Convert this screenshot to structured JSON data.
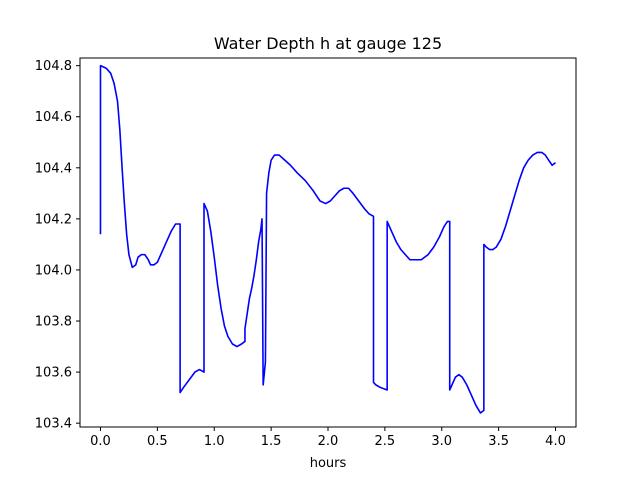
{
  "chart_data": {
    "type": "line",
    "title": "Water Depth h at gauge 125",
    "xlabel": "hours",
    "ylabel": "",
    "xlim": [
      -0.18,
      4.18
    ],
    "ylim": [
      103.385,
      104.83
    ],
    "xticks": [
      0.0,
      0.5,
      1.0,
      1.5,
      2.0,
      2.5,
      3.0,
      3.5,
      4.0
    ],
    "xtick_labels": [
      "0.0",
      "0.5",
      "1.0",
      "1.5",
      "2.0",
      "2.5",
      "3.0",
      "3.5",
      "4.0"
    ],
    "yticks": [
      103.4,
      103.6,
      103.8,
      104.0,
      104.2,
      104.4,
      104.6,
      104.8
    ],
    "ytick_labels": [
      "103.4",
      "103.6",
      "103.8",
      "104.0",
      "104.2",
      "104.4",
      "104.6",
      "104.8"
    ],
    "grid": false,
    "series": [
      {
        "color": "#0000ff",
        "x": [
          0.0,
          0.0,
          0.0,
          0.0,
          0.05,
          0.09,
          0.12,
          0.15,
          0.17,
          0.19,
          0.21,
          0.23,
          0.25,
          0.28,
          0.31,
          0.33,
          0.36,
          0.39,
          0.42,
          0.44,
          0.47,
          0.5,
          0.54,
          0.58,
          0.62,
          0.66,
          0.7,
          0.7,
          0.73,
          0.78,
          0.83,
          0.87,
          0.91,
          0.91,
          0.91,
          0.94,
          0.97,
          1.0,
          1.03,
          1.06,
          1.09,
          1.12,
          1.16,
          1.2,
          1.24,
          1.27,
          1.27,
          1.29,
          1.31,
          1.33,
          1.35,
          1.37,
          1.39,
          1.41,
          1.42,
          1.43,
          1.43,
          1.45,
          1.46,
          1.46,
          1.48,
          1.5,
          1.53,
          1.57,
          1.62,
          1.67,
          1.73,
          1.8,
          1.87,
          1.93,
          1.98,
          2.02,
          2.06,
          2.1,
          2.14,
          2.18,
          2.22,
          2.27,
          2.32,
          2.36,
          2.4,
          2.4,
          2.42,
          2.46,
          2.52,
          2.52,
          2.53,
          2.56,
          2.6,
          2.64,
          2.68,
          2.72,
          2.77,
          2.82,
          2.88,
          2.93,
          2.98,
          3.02,
          3.05,
          3.07,
          3.07,
          3.09,
          3.12,
          3.15,
          3.18,
          3.22,
          3.26,
          3.3,
          3.34,
          3.37,
          3.37,
          3.39,
          3.42,
          3.45,
          3.48,
          3.52,
          3.56,
          3.6,
          3.64,
          3.68,
          3.72,
          3.76,
          3.8,
          3.84,
          3.88,
          3.91,
          3.94,
          3.97,
          4.0
        ],
        "y": [
          104.14,
          104.38,
          104.8,
          104.8,
          104.79,
          104.77,
          104.73,
          104.66,
          104.55,
          104.4,
          104.26,
          104.14,
          104.06,
          104.01,
          104.02,
          104.05,
          104.06,
          104.06,
          104.04,
          104.02,
          104.02,
          104.03,
          104.07,
          104.11,
          104.15,
          104.18,
          104.18,
          103.52,
          103.54,
          103.57,
          103.6,
          103.61,
          103.6,
          103.6,
          104.26,
          104.23,
          104.15,
          104.05,
          103.94,
          103.85,
          103.78,
          103.74,
          103.71,
          103.7,
          103.71,
          103.72,
          103.77,
          103.83,
          103.89,
          103.93,
          103.98,
          104.04,
          104.11,
          104.16,
          104.2,
          103.55,
          103.55,
          103.64,
          104.3,
          104.3,
          104.38,
          104.43,
          104.45,
          104.45,
          104.43,
          104.41,
          104.38,
          104.35,
          104.31,
          104.27,
          104.26,
          104.27,
          104.29,
          104.31,
          104.32,
          104.32,
          104.3,
          104.27,
          104.24,
          104.22,
          104.21,
          103.56,
          103.55,
          103.54,
          103.53,
          104.19,
          104.18,
          104.15,
          104.11,
          104.08,
          104.06,
          104.04,
          104.04,
          104.04,
          104.06,
          104.09,
          104.13,
          104.17,
          104.19,
          104.19,
          103.53,
          103.55,
          103.58,
          103.59,
          103.58,
          103.55,
          103.51,
          103.47,
          103.44,
          103.45,
          104.1,
          104.09,
          104.08,
          104.08,
          104.09,
          104.12,
          104.17,
          104.23,
          104.29,
          104.35,
          104.4,
          104.43,
          104.45,
          104.46,
          104.46,
          104.45,
          104.43,
          104.41,
          104.42
        ]
      }
    ]
  }
}
